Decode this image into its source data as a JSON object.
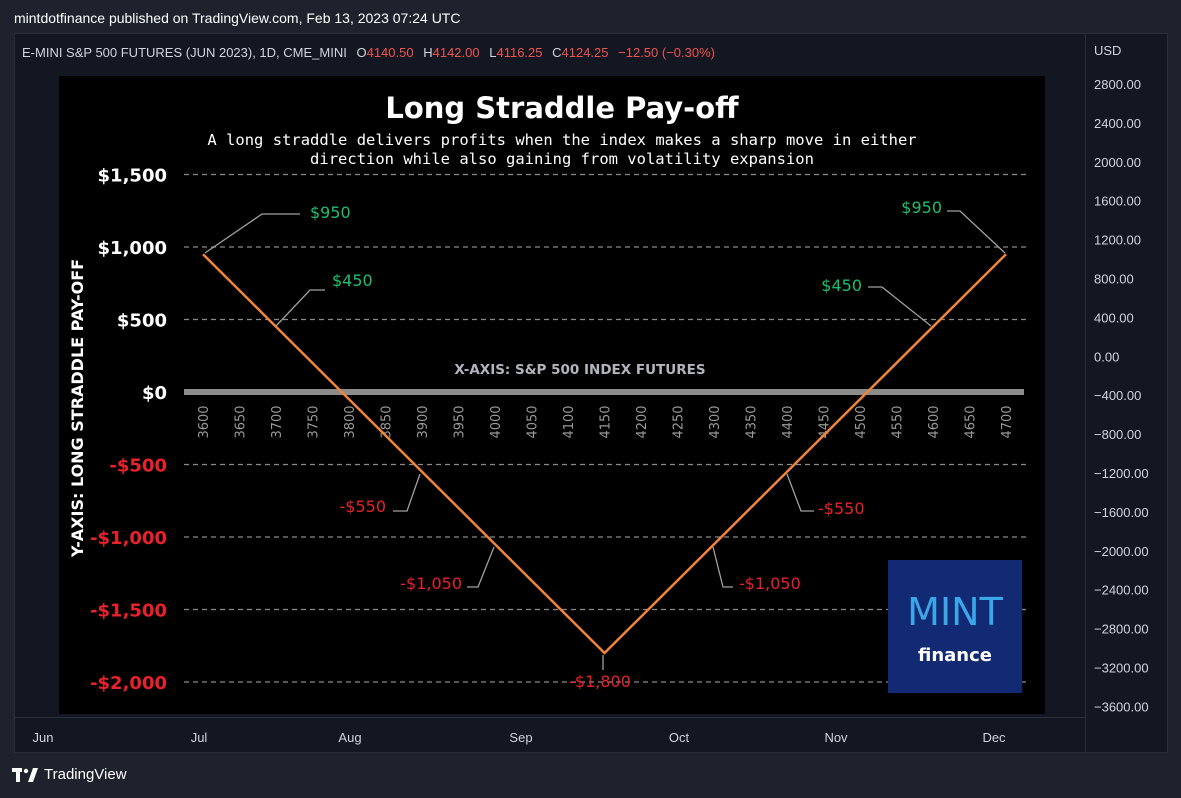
{
  "publisher": "mintdotfinance published on TradingView.com, Feb 13, 2023 07:24 UTC",
  "symbol": {
    "name": "E-MINI S&P 500 FUTURES (JUN 2023), 1D, CME_MINI",
    "o_label": "O",
    "o": "4140.50",
    "h_label": "H",
    "h": "4142.00",
    "l_label": "L",
    "l": "4116.25",
    "c_label": "C",
    "c": "4124.25",
    "change": "−12.50 (−0.30%)"
  },
  "price_axis": {
    "currency": "USD",
    "ticks": [
      "2800.00",
      "2400.00",
      "2000.00",
      "1600.00",
      "1200.00",
      "800.00",
      "400.00",
      "0.00",
      "−400.00",
      "−800.00",
      "−1200.00",
      "−1600.00",
      "−2000.00",
      "−2400.00",
      "−2800.00",
      "−3200.00",
      "−3600.00"
    ]
  },
  "time_axis": {
    "ticks": [
      "Jun",
      "Jul",
      "Aug",
      "Sep",
      "Oct",
      "Nov",
      "Dec"
    ]
  },
  "brand": {
    "name": "TradingView"
  },
  "logo": {
    "line1": "MINT",
    "line2": "finance"
  },
  "colors": {
    "line": "#f0843a",
    "positive": "#1fbf6a",
    "negative": "#e8212a",
    "panel": "#000000",
    "logo_bg": "#122a73",
    "logo_text": "#3ba6e8"
  },
  "chart_data": {
    "type": "line",
    "title": "Long Straddle Pay-off",
    "subtitle": [
      "A long straddle delivers profits when the index makes a sharp move in either",
      "direction while also gaining from volatility expansion"
    ],
    "xlabel": "X-AXIS: S&P 500 INDEX FUTURES",
    "ylabel": "Y-AXIS: LONG STRADDLE PAY-OFF",
    "x": [
      3600,
      4150,
      4700
    ],
    "series": [
      {
        "values": [
          950,
          -1800,
          950
        ]
      }
    ],
    "xticks": [
      "3600",
      "3650",
      "3700",
      "3750",
      "3800",
      "3850",
      "3900",
      "3950",
      "4000",
      "4050",
      "4100",
      "4150",
      "4200",
      "4250",
      "4300",
      "4350",
      "4400",
      "4450",
      "4500",
      "4550",
      "4600",
      "4650",
      "4700"
    ],
    "yticks": [
      {
        "value": 1500,
        "label": "$1,500"
      },
      {
        "value": 1000,
        "label": "$1,000"
      },
      {
        "value": 500,
        "label": "$500"
      },
      {
        "value": 0,
        "label": "$0"
      },
      {
        "value": -500,
        "label": "-$500"
      },
      {
        "value": -1000,
        "label": "-$1,000"
      },
      {
        "value": -1500,
        "label": "-$1,500"
      },
      {
        "value": -2000,
        "label": "-$2,000"
      }
    ],
    "ylim": [
      -2050,
      1600
    ],
    "grid": true,
    "annotations": [
      {
        "text": "$950",
        "x": 3600,
        "y": 950
      },
      {
        "text": "$450",
        "x": 3700,
        "y": 450
      },
      {
        "text": "-$550",
        "x": 3900,
        "y": -550
      },
      {
        "text": "-$1,050",
        "x": 4000,
        "y": -1050
      },
      {
        "text": "-$1,800",
        "x": 4150,
        "y": -1800
      },
      {
        "text": "-$1,050",
        "x": 4300,
        "y": -1050
      },
      {
        "text": "-$550",
        "x": 4400,
        "y": -550
      },
      {
        "text": "$450",
        "x": 4600,
        "y": 450
      },
      {
        "text": "$950",
        "x": 4700,
        "y": 950
      }
    ]
  }
}
